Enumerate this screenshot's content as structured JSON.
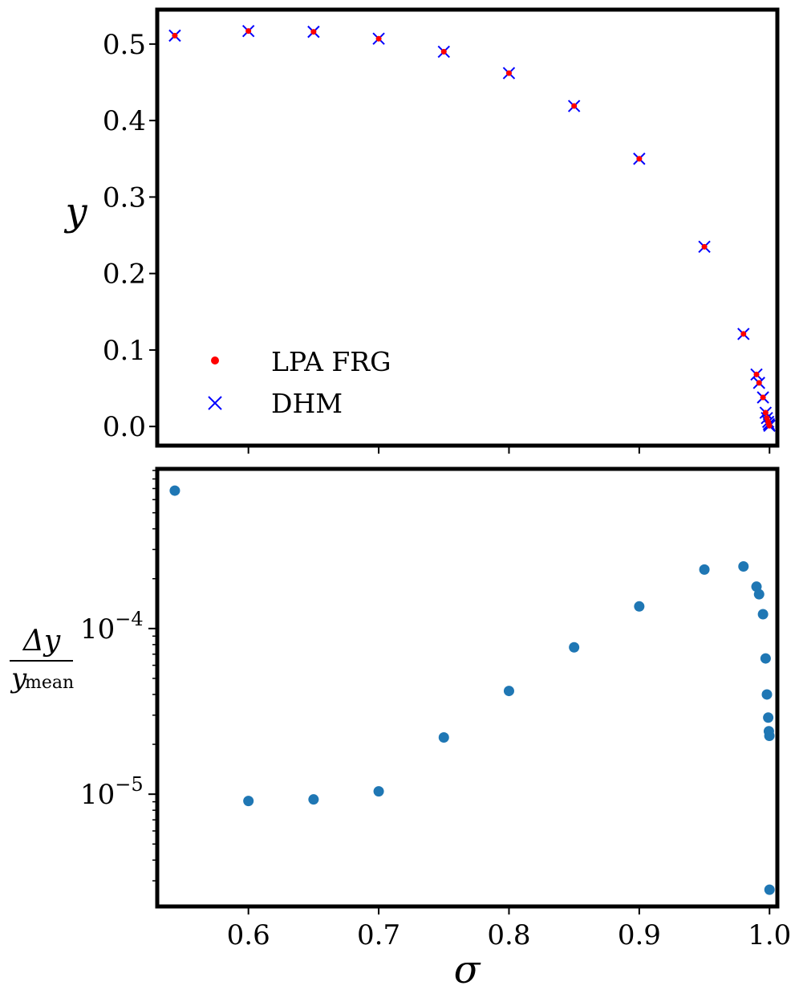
{
  "chart_data": [
    {
      "type": "scatter",
      "xlabel": "σ",
      "ylabel": "y",
      "xlim": [
        0.53,
        1.006
      ],
      "ylim": [
        -0.025,
        0.545
      ],
      "yticks": [
        "0.0",
        "0.1",
        "0.2",
        "0.3",
        "0.4",
        "0.5"
      ],
      "legend_position": "lower-left",
      "series": [
        {
          "name": "LPA FRG",
          "marker": "dot",
          "color": "#ff0000",
          "x": [
            0.5435,
            0.6,
            0.65,
            0.7,
            0.75,
            0.8,
            0.85,
            0.9,
            0.95,
            0.98,
            0.99,
            0.992,
            0.995,
            0.997,
            0.998,
            0.999,
            0.9995,
            0.9999
          ],
          "y": [
            0.511,
            0.517,
            0.516,
            0.507,
            0.49,
            0.462,
            0.419,
            0.35,
            0.235,
            0.121,
            0.068,
            0.057,
            0.038,
            0.018,
            0.011,
            0.006,
            0.003,
            0.001
          ]
        },
        {
          "name": "DHM",
          "marker": "x",
          "color": "#0000ff",
          "x": [
            0.5435,
            0.6,
            0.65,
            0.7,
            0.75,
            0.8,
            0.85,
            0.9,
            0.95,
            0.98,
            0.99,
            0.992,
            0.995,
            0.997,
            0.998,
            0.999,
            0.9995,
            0.9999
          ],
          "y": [
            0.511,
            0.517,
            0.516,
            0.507,
            0.49,
            0.462,
            0.419,
            0.35,
            0.235,
            0.121,
            0.068,
            0.057,
            0.038,
            0.018,
            0.011,
            0.006,
            0.003,
            0.001
          ]
        }
      ]
    },
    {
      "type": "scatter",
      "xlabel": "σ",
      "ylabel": "Δy / y_mean",
      "ylabel_numerator": "Δy",
      "ylabel_denominator": "y",
      "ylabel_subscript": "mean",
      "yscale": "log",
      "ylim": [
        2.1e-06,
        0.00092
      ],
      "yticks": [
        {
          "value": 1e-05,
          "base": "10",
          "exponent": "−5"
        },
        {
          "value": 0.0001,
          "base": "10",
          "exponent": "−4"
        }
      ],
      "xticks": [
        "0.6",
        "0.7",
        "0.8",
        "0.9",
        "1.0"
      ],
      "xtick_values": [
        0.6,
        0.7,
        0.8,
        0.9,
        1.0
      ],
      "series": [
        {
          "color": "#1f77b4",
          "x": [
            0.5435,
            0.6,
            0.65,
            0.7,
            0.75,
            0.8,
            0.85,
            0.9,
            0.95,
            0.98,
            0.99,
            0.992,
            0.995,
            0.997,
            0.998,
            0.999,
            0.9995,
            0.9999,
            1.0
          ],
          "y": [
            0.00068,
            9.1e-06,
            9.3e-06,
            1.04e-05,
            2.2e-05,
            4.2e-05,
            7.7e-05,
            0.000136,
            0.000227,
            0.000237,
            0.000179,
            0.000161,
            0.000122,
            6.6e-05,
            4e-05,
            2.9e-05,
            2.4e-05,
            2.25e-05,
            2.65e-06
          ]
        }
      ]
    }
  ]
}
